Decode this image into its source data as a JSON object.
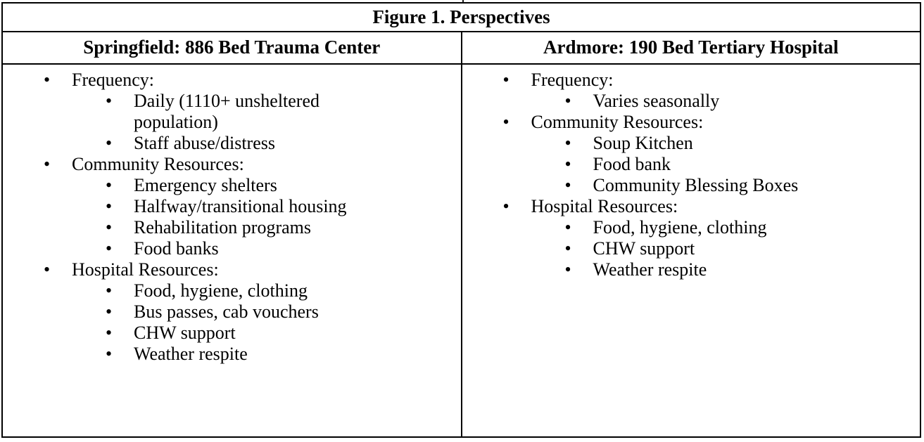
{
  "table": {
    "title": "Figure 1. Perspectives",
    "bullet": "•",
    "colors": {
      "border": "#000000",
      "text": "#000000",
      "background": "#ffffff"
    },
    "columns": [
      {
        "header": "Springfield: 886 Bed Trauma Center",
        "sections": [
          {
            "label": "Frequency:",
            "items": [
              "Daily (1110+ unsheltered population)",
              "Staff abuse/distress"
            ]
          },
          {
            "label": "Community Resources:",
            "items": [
              "Emergency shelters",
              "Halfway/transitional housing",
              "Rehabilitation programs",
              "Food banks"
            ]
          },
          {
            "label": "Hospital Resources:",
            "items": [
              "Food, hygiene, clothing",
              "Bus passes, cab vouchers",
              "CHW support",
              "Weather respite"
            ]
          }
        ]
      },
      {
        "header": "Ardmore: 190 Bed Tertiary Hospital",
        "sections": [
          {
            "label": "Frequency:",
            "items": [
              "Varies seasonally"
            ]
          },
          {
            "label": "Community Resources:",
            "items": [
              "Soup Kitchen",
              "Food bank",
              "Community Blessing Boxes"
            ]
          },
          {
            "label": "Hospital Resources:",
            "items": [
              "Food, hygiene, clothing",
              "CHW support",
              "Weather respite"
            ]
          }
        ]
      }
    ]
  }
}
